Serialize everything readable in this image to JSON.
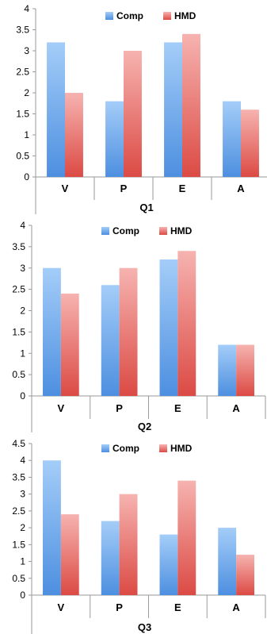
{
  "colors": {
    "comp_light": "#a4cdf8",
    "comp_dark": "#4d8fe0",
    "hmd_light": "#f6b3b0",
    "hmd_dark": "#dc4a44",
    "axis": "#9a9a9a",
    "grid": "#9a9a9a"
  },
  "chart_data": [
    {
      "type": "bar",
      "title": "Q1",
      "categories": [
        "V",
        "P",
        "E",
        "A"
      ],
      "series": [
        {
          "name": "Comp",
          "values": [
            3.2,
            1.8,
            3.2,
            1.8
          ]
        },
        {
          "name": "HMD",
          "values": [
            2.0,
            3.0,
            3.4,
            1.6
          ]
        }
      ],
      "ylim": [
        0,
        4
      ],
      "yticks": [
        "0",
        "0.5",
        "1",
        "1.5",
        "2",
        "2.5",
        "3",
        "3.5",
        "4"
      ],
      "legend": "top-center",
      "grid": false
    },
    {
      "type": "bar",
      "title": "Q2",
      "categories": [
        "V",
        "P",
        "E",
        "A"
      ],
      "series": [
        {
          "name": "Comp",
          "values": [
            3.0,
            2.6,
            3.2,
            1.2
          ]
        },
        {
          "name": "HMD",
          "values": [
            2.4,
            3.0,
            3.4,
            1.2
          ]
        }
      ],
      "ylim": [
        0,
        4
      ],
      "yticks": [
        "0",
        "0.5",
        "1",
        "1.5",
        "2",
        "2.5",
        "3",
        "3.5",
        "4"
      ],
      "legend": "top-center",
      "grid": false
    },
    {
      "type": "bar",
      "title": "Q3",
      "categories": [
        "V",
        "P",
        "E",
        "A"
      ],
      "series": [
        {
          "name": "Comp",
          "values": [
            4.0,
            2.2,
            1.8,
            2.0
          ]
        },
        {
          "name": "HMD",
          "values": [
            2.4,
            3.0,
            3.4,
            1.2
          ]
        }
      ],
      "ylim": [
        0,
        4.5
      ],
      "yticks": [
        "0",
        "0.5",
        "1",
        "1.5",
        "2",
        "2.5",
        "3",
        "3.5",
        "4",
        "4.5"
      ],
      "legend": "top-center",
      "grid": false
    }
  ]
}
